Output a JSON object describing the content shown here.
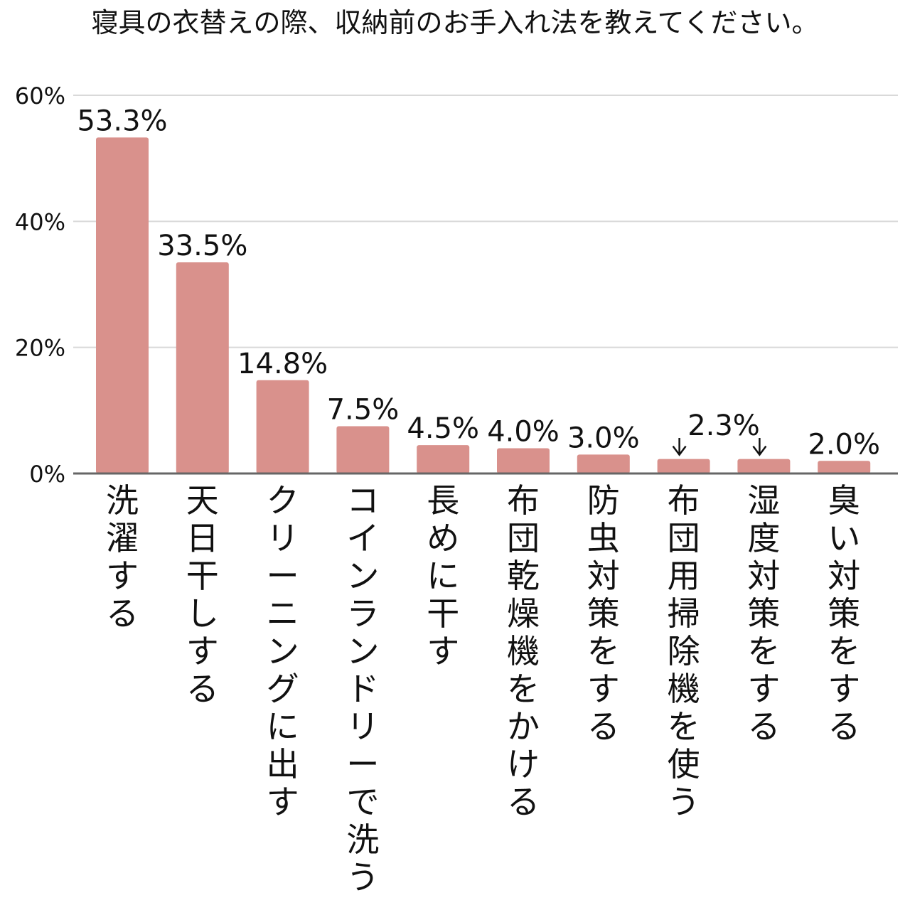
{
  "chart_data": {
    "type": "bar",
    "title": "寝具の衣替えの際、収納前のお手入れ法を教えてください。",
    "xlabel": "",
    "ylabel": "",
    "ylim": [
      0,
      60
    ],
    "yticks": [
      0,
      20,
      40,
      60
    ],
    "ytick_labels": [
      "0%",
      "20%",
      "40%",
      "60%"
    ],
    "grid": true,
    "legend": "none",
    "categories": [
      "洗濯する",
      "天日干しする",
      "クリーニングに出す",
      "コインランドリーで洗う",
      "長めに干す",
      "布団乾燥機をかける",
      "防虫対策をする",
      "布団用掃除機を使う",
      "湿度対策をする",
      "臭い対策をする"
    ],
    "values": [
      53.3,
      33.5,
      14.8,
      7.5,
      4.5,
      4.0,
      3.0,
      2.3,
      2.3,
      2.0
    ],
    "data_labels": [
      "53.3%",
      "33.5%",
      "14.8%",
      "7.5%",
      "4.5%",
      "4.0%",
      "3.0%",
      "2.3%",
      "",
      "2.0%"
    ],
    "shared_label": {
      "text": "2.3%",
      "indices": [
        7,
        8
      ]
    },
    "colors": {
      "bar": "#d9918c",
      "grid": "#d9d9d9",
      "axis": "#666666",
      "text": "#111111"
    }
  }
}
